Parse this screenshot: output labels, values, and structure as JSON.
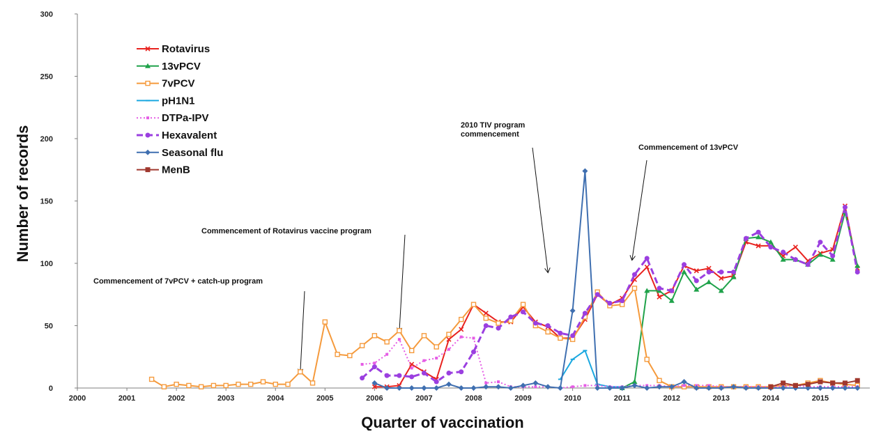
{
  "chart_data": {
    "type": "line",
    "title": "",
    "xlabel": "Quarter of vaccination",
    "ylabel": "Number of records",
    "ylim": [
      0,
      300
    ],
    "yticks": [
      0,
      50,
      100,
      150,
      200,
      250,
      300
    ],
    "xlim": [
      2000,
      2016
    ],
    "xticks": [
      "2000",
      "2001",
      "2002",
      "2003",
      "2004",
      "2005",
      "2006",
      "2007",
      "2008",
      "2009",
      "2010",
      "2011",
      "2012",
      "2013",
      "2014",
      "2015"
    ],
    "grid": false,
    "legend_position": "top-left",
    "series": [
      {
        "name": "Rotavirus",
        "color": "#e8221e",
        "marker": "x",
        "dash": "solid",
        "x": [
          2006.0,
          2006.25,
          2006.5,
          2006.75,
          2007.0,
          2007.25,
          2007.5,
          2007.75,
          2008.0,
          2008.25,
          2008.5,
          2008.75,
          2009.0,
          2009.25,
          2009.5,
          2009.75,
          2010.0,
          2010.25,
          2010.5,
          2010.75,
          2011.0,
          2011.25,
          2011.5,
          2011.75,
          2012.0,
          2012.25,
          2012.5,
          2012.75,
          2013.0,
          2013.25,
          2013.5,
          2013.75,
          2014.0,
          2014.25,
          2014.5,
          2014.75,
          2015.0,
          2015.25,
          2015.5,
          2015.75
        ],
        "y": [
          1,
          1,
          2,
          19,
          13,
          7,
          39,
          47,
          67,
          60,
          53,
          53,
          65,
          53,
          49,
          40,
          40,
          55,
          75,
          67,
          72,
          87,
          97,
          73,
          78,
          98,
          94,
          96,
          88,
          90,
          117,
          114,
          114,
          106,
          113,
          102,
          108,
          111,
          146,
          96
        ]
      },
      {
        "name": "13vPCV",
        "color": "#1fa24a",
        "marker": "triangle",
        "dash": "solid",
        "x": [
          2011.0,
          2011.25,
          2011.5,
          2011.75,
          2012.0,
          2012.25,
          2012.5,
          2012.75,
          2013.0,
          2013.25,
          2013.5,
          2013.75,
          2014.0,
          2014.25,
          2014.5,
          2014.75,
          2015.0,
          2015.25,
          2015.5,
          2015.75
        ],
        "y": [
          0,
          5,
          78,
          78,
          70,
          93,
          79,
          85,
          78,
          89,
          120,
          121,
          117,
          103,
          103,
          99,
          107,
          103,
          141,
          98
        ]
      },
      {
        "name": "7vPCV",
        "color": "#f59a3c",
        "marker": "square-open",
        "dash": "solid",
        "x": [
          2001.5,
          2001.75,
          2002.0,
          2002.25,
          2002.5,
          2002.75,
          2003.0,
          2003.25,
          2003.5,
          2003.75,
          2004.0,
          2004.25,
          2004.5,
          2004.75,
          2005.0,
          2005.25,
          2005.5,
          2005.75,
          2006.0,
          2006.25,
          2006.5,
          2006.75,
          2007.0,
          2007.25,
          2007.5,
          2007.75,
          2008.0,
          2008.25,
          2008.5,
          2008.75,
          2009.0,
          2009.25,
          2009.5,
          2009.75,
          2010.0,
          2010.25,
          2010.5,
          2010.75,
          2011.0,
          2011.25,
          2011.5,
          2011.75,
          2012.0,
          2012.25,
          2012.5,
          2012.75,
          2013.0,
          2013.25,
          2013.5,
          2013.75,
          2014.0,
          2014.25,
          2014.5,
          2014.75,
          2015.0,
          2015.25,
          2015.5,
          2015.75
        ],
        "y": [
          7,
          1,
          3,
          2,
          1,
          2,
          2,
          3,
          3,
          5,
          3,
          3,
          13,
          4,
          53,
          27,
          26,
          34,
          42,
          37,
          46,
          30,
          42,
          33,
          43,
          55,
          67,
          56,
          52,
          54,
          67,
          50,
          45,
          40,
          39,
          57,
          77,
          66,
          67,
          80,
          23,
          6,
          1,
          1,
          1,
          1,
          1,
          1,
          1,
          1,
          1,
          2,
          2,
          4,
          6,
          4,
          3,
          2
        ]
      },
      {
        "name": "pH1N1",
        "color": "#1ba8e0",
        "marker": "dash",
        "dash": "solid",
        "x": [
          2009.75,
          2010.0,
          2010.25,
          2010.5,
          2010.75,
          2011.0
        ],
        "y": [
          7,
          23,
          30,
          3,
          1,
          1
        ]
      },
      {
        "name": "DTPa-IPV",
        "color": "#e55ce5",
        "marker": "square-small",
        "dash": "dotted",
        "x": [
          2005.75,
          2006.0,
          2006.25,
          2006.5,
          2006.75,
          2007.0,
          2007.25,
          2007.5,
          2007.75,
          2008.0,
          2008.25,
          2008.5,
          2008.75,
          2009.0,
          2009.25,
          2009.5,
          2009.75,
          2010.0,
          2010.25,
          2010.5,
          2010.75,
          2011.0,
          2011.25,
          2011.5,
          2011.75,
          2012.0,
          2012.25,
          2012.5,
          2012.75,
          2013.0,
          2013.25,
          2013.5,
          2013.75,
          2014.0,
          2014.25,
          2014.5,
          2014.75,
          2015.0,
          2015.25,
          2015.5,
          2015.75
        ],
        "y": [
          19,
          20,
          27,
          39,
          16,
          22,
          24,
          31,
          41,
          40,
          4,
          5,
          1,
          1,
          1,
          1,
          0,
          1,
          2,
          2,
          1,
          1,
          2,
          2,
          2,
          1,
          2,
          2,
          2,
          1,
          1,
          1,
          1,
          1,
          1,
          2,
          1,
          1,
          1,
          1,
          1
        ]
      },
      {
        "name": "Hexavalent",
        "color": "#9b3fe0",
        "marker": "circle",
        "dash": "dashed",
        "x": [
          2005.75,
          2006.0,
          2006.25,
          2006.5,
          2006.75,
          2007.0,
          2007.25,
          2007.5,
          2007.75,
          2008.0,
          2008.25,
          2008.5,
          2008.75,
          2009.0,
          2009.25,
          2009.5,
          2009.75,
          2010.0,
          2010.25,
          2010.5,
          2010.75,
          2011.0,
          2011.25,
          2011.5,
          2011.75,
          2012.0,
          2012.25,
          2012.5,
          2012.75,
          2013.0,
          2013.25,
          2013.5,
          2013.75,
          2014.0,
          2014.25,
          2014.5,
          2014.75,
          2015.0,
          2015.25,
          2015.5,
          2015.75
        ],
        "y": [
          8,
          17,
          10,
          10,
          9,
          12,
          5,
          12,
          13,
          29,
          50,
          48,
          57,
          61,
          52,
          50,
          44,
          42,
          60,
          75,
          68,
          70,
          91,
          104,
          80,
          78,
          99,
          86,
          93,
          93,
          93,
          120,
          125,
          113,
          109,
          103,
          99,
          117,
          106,
          145,
          93
        ]
      },
      {
        "name": "Seasonal flu",
        "color": "#3f6fb0",
        "marker": "diamond",
        "dash": "solid",
        "x": [
          2006.0,
          2006.25,
          2006.5,
          2006.75,
          2007.0,
          2007.25,
          2007.5,
          2007.75,
          2008.0,
          2008.25,
          2008.5,
          2008.75,
          2009.0,
          2009.25,
          2009.5,
          2009.75,
          2010.0,
          2010.25,
          2010.5,
          2010.75,
          2011.0,
          2011.25,
          2011.5,
          2011.75,
          2012.0,
          2012.25,
          2012.5,
          2012.75,
          2013.0,
          2013.25,
          2013.5,
          2013.75,
          2014.0,
          2014.25,
          2014.5,
          2014.75,
          2015.0,
          2015.25,
          2015.5,
          2015.75
        ],
        "y": [
          4,
          0,
          0,
          0,
          0,
          0,
          3,
          0,
          0,
          1,
          1,
          0,
          2,
          4,
          1,
          0,
          62,
          174,
          0,
          0,
          0,
          2,
          0,
          1,
          1,
          5,
          0,
          0,
          0,
          1,
          0,
          0,
          0,
          0,
          0,
          0,
          0,
          0,
          0,
          0
        ]
      },
      {
        "name": "MenB",
        "color": "#a0382e",
        "marker": "square",
        "dash": "solid",
        "x": [
          2014.0,
          2014.25,
          2014.5,
          2014.75,
          2015.0,
          2015.25,
          2015.5,
          2015.75
        ],
        "y": [
          1,
          4,
          2,
          3,
          5,
          4,
          4,
          6
        ]
      }
    ],
    "annotations": [
      {
        "text": [
          "Commencement of 7vPCV + catch-up program"
        ],
        "arrow_to": {
          "x": 2004.5,
          "y": 12
        }
      },
      {
        "text": [
          "Commencement of Rotavirus vaccine program"
        ],
        "arrow_to": {
          "x": 2006.5,
          "y": 45
        }
      },
      {
        "text": [
          "2010 TIV program",
          "commencement"
        ],
        "arrow_to": {
          "x": 2009.5,
          "y": 93
        }
      },
      {
        "text": [
          "Commencement of 13vPCV"
        ],
        "arrow_to": {
          "x": 2011.2,
          "y": 103
        }
      }
    ]
  }
}
